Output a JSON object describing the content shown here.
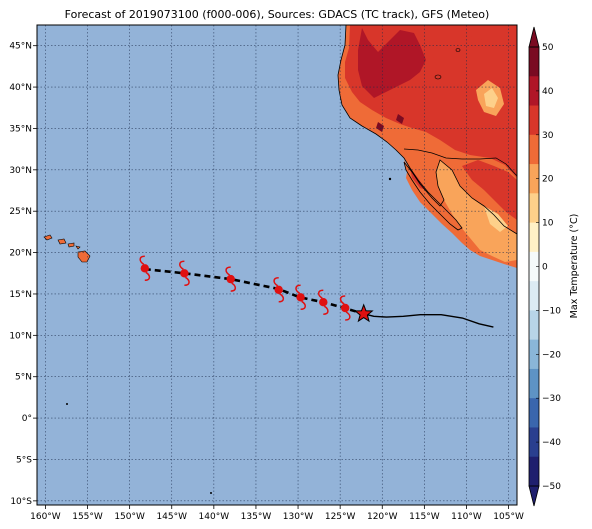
{
  "title": "Forecast of 2019073100 (f000-006), Sources: GDACS (TC track), GFS (Meteo)",
  "lon_labels": [
    "160°W",
    "155°W",
    "150°W",
    "145°W",
    "140°W",
    "135°W",
    "130°W",
    "125°W",
    "120°W",
    "115°W",
    "110°W",
    "105°W"
  ],
  "lat_labels": [
    "45°N",
    "40°N",
    "35°N",
    "30°N",
    "25°N",
    "20°N",
    "15°N",
    "10°N",
    "5°N",
    "0°",
    "5°S",
    "10°S"
  ],
  "colorbar": {
    "label": "Max Temperature (°C)",
    "ticks": [
      "50",
      "40",
      "30",
      "20",
      "10",
      "0",
      "−10",
      "−20",
      "−30",
      "−40",
      "−50"
    ],
    "colors": [
      "#1f1f6e",
      "#2a3f8f",
      "#3a66ad",
      "#5e93c4",
      "#8ab6d8",
      "#b8d5e8",
      "#dcebf3",
      "#f5fafa",
      "#fff1c6",
      "#fdd08a",
      "#f9a45a",
      "#ef6b37",
      "#d8362a",
      "#b01627",
      "#7a0b22"
    ]
  },
  "map": {
    "ocean_color": "#93b3d8",
    "extent": {
      "lon": [
        -161,
        -104
      ],
      "lat": [
        -10.5,
        47.5
      ]
    }
  },
  "track": {
    "past_path": [
      [
        -122.2,
        12.6
      ],
      [
        -121,
        12.3
      ],
      [
        -119.5,
        12.2
      ],
      [
        -117.5,
        12.3
      ],
      [
        -115.5,
        12.5
      ],
      [
        -113,
        12.5
      ],
      [
        -110.5,
        12.1
      ],
      [
        -108.5,
        11.4
      ],
      [
        -106.8,
        11
      ]
    ],
    "forecast_path": [
      [
        -148.2,
        18
      ],
      [
        -143.5,
        17.5
      ],
      [
        -138,
        16.8
      ],
      [
        -132.3,
        15.6
      ],
      [
        -129.8,
        14.6
      ],
      [
        -127,
        14
      ],
      [
        -124.5,
        13.3
      ],
      [
        -122.2,
        12.6
      ]
    ],
    "forecast_symbols": [
      [
        -148.2,
        18.1
      ],
      [
        -143.5,
        17.5
      ],
      [
        -138,
        16.8
      ],
      [
        -132.3,
        15.5
      ],
      [
        -129.7,
        14.6
      ],
      [
        -127,
        14
      ],
      [
        -124.4,
        13.3
      ]
    ],
    "current_position": [
      -122.2,
      12.6
    ]
  }
}
